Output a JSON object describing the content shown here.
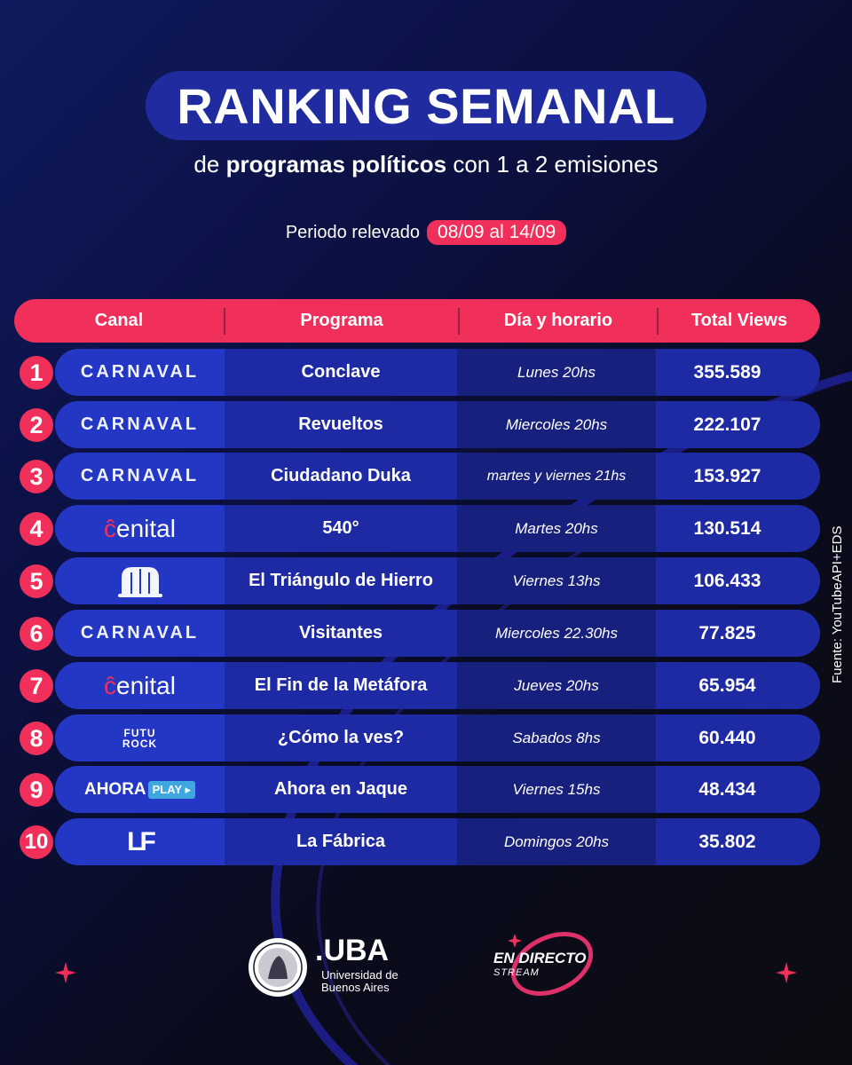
{
  "title": "RANKING SEMANAL",
  "subtitle": {
    "prefix": "de",
    "bold": "programas políticos",
    "suffix": "con 1 a 2 emisiones"
  },
  "period": {
    "label": "Periodo relevado",
    "range": "08/09 al 14/09"
  },
  "columns": {
    "canal": "Canal",
    "programa": "Programa",
    "dia": "Día y horario",
    "views": "Total Views"
  },
  "rows": [
    {
      "rank": "1",
      "channel": "CARNAVAL",
      "program": "Conclave",
      "schedule": "Lunes 20hs",
      "views": "355.589"
    },
    {
      "rank": "2",
      "channel": "CARNAVAL",
      "program": "Revueltos",
      "schedule": "Miercoles 20hs",
      "views": "222.107"
    },
    {
      "rank": "3",
      "channel": "CARNAVAL",
      "program": "Ciudadano Duka",
      "schedule": "martes y viernes 21hs",
      "views": "153.927"
    },
    {
      "rank": "4",
      "channel": "cenital",
      "program": "540°",
      "schedule": "Martes 20hs",
      "views": "130.514"
    },
    {
      "rank": "5",
      "channel": "el-triangulo-logo",
      "program": "El Triángulo de Hierro",
      "schedule": "Viernes 13hs",
      "views": "106.433"
    },
    {
      "rank": "6",
      "channel": "CARNAVAL",
      "program": "Visitantes",
      "schedule": "Miercoles 22.30hs",
      "views": "77.825"
    },
    {
      "rank": "7",
      "channel": "cenital",
      "program": "El Fin de la Metáfora",
      "schedule": "Jueves 20hs",
      "views": "65.954"
    },
    {
      "rank": "8",
      "channel": "FUTUROCK",
      "program": "¿Cómo la ves?",
      "schedule": "Sabados 8hs",
      "views": "60.440"
    },
    {
      "rank": "9",
      "channel": "AHORA PLAY",
      "program": "Ahora en Jaque",
      "schedule": "Viernes 15hs",
      "views": "48.434"
    },
    {
      "rank": "10",
      "channel": "LF",
      "program": "La Fábrica",
      "schedule": "Domingos 20hs",
      "views": "35.802"
    }
  ],
  "logos": {
    "carnaval": "CARNAVAL",
    "cenital_c": "ĉ",
    "cenital_rest": "enital",
    "futurock_top": "FUTU",
    "futurock_bottom": "ROCK",
    "ahora": "AHORA",
    "play": "PLAY ▸",
    "lf": "LF"
  },
  "source": "Fuente: YouTubeAPI+EDS",
  "footer": {
    "uba_name": ".UBA",
    "uba_line1": "Universidad de",
    "uba_line2": "Buenos Aires",
    "ed_title": "EN DIRECTO",
    "ed_sub": "STREAM"
  },
  "colors": {
    "accent": "#f0305a",
    "pill": "#1f2b9e",
    "row": "#2233b8"
  }
}
